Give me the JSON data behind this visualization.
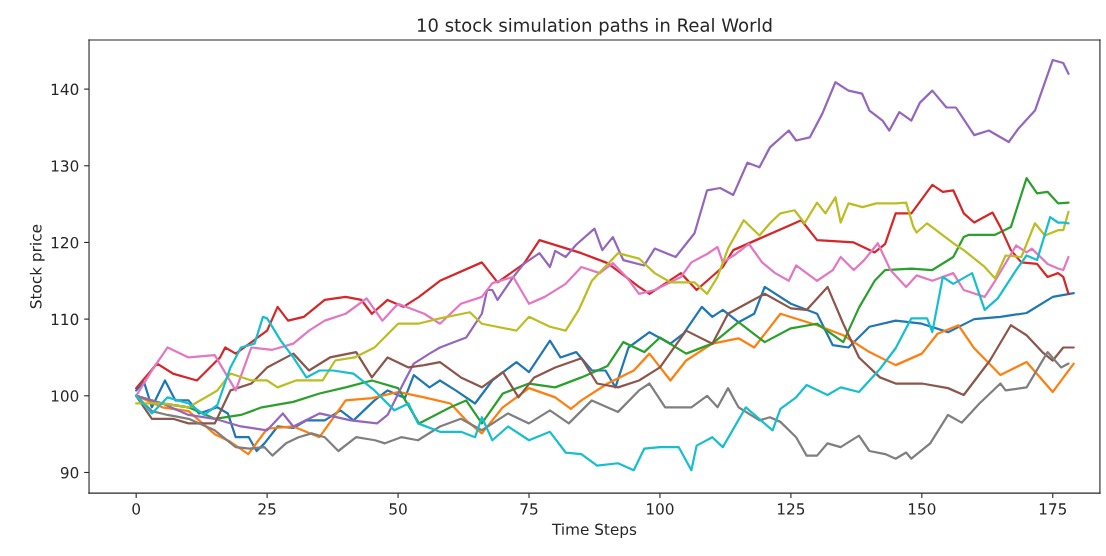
{
  "chart_data": {
    "type": "line",
    "title": "10 stock simulation paths in Real World",
    "xlabel": "Time Steps",
    "ylabel": "Stock price",
    "xlim": [
      -9,
      184
    ],
    "ylim": [
      87.3,
      146.4
    ],
    "xticks": [
      0,
      25,
      50,
      75,
      100,
      125,
      150,
      175
    ],
    "yticks": [
      90,
      100,
      110,
      120,
      130,
      140
    ],
    "line_style": "solid",
    "marker": "none",
    "series": [
      {
        "color": "#1f77b4",
        "x": [
          0,
          1.5,
          3,
          5.5,
          7.5,
          10,
          12,
          15.5,
          17.5,
          19,
          21.5,
          23,
          24.5,
          27,
          30,
          32.5,
          36,
          39,
          41.5,
          45.5,
          48,
          51.3,
          53,
          56,
          58,
          61,
          64.7,
          68,
          72.6,
          75,
          79,
          81,
          84,
          87,
          89.6,
          91.5,
          94,
          98,
          102,
          104.5,
          108,
          110,
          112,
          115,
          118,
          120,
          125,
          130,
          133,
          136,
          140,
          145,
          150,
          155,
          160,
          165,
          170,
          175,
          179
        ],
        "values": [
          100.7,
          101.8,
          98.5,
          102,
          99.4,
          99.4,
          97.7,
          98.5,
          97.7,
          94.6,
          94.6,
          92.8,
          93.8,
          96,
          95.8,
          96.8,
          96.8,
          98.1,
          96.8,
          99.4,
          100.7,
          99.7,
          102.7,
          101.1,
          102,
          100.7,
          99,
          102,
          104.4,
          103.1,
          107.2,
          105,
          105.7,
          103.3,
          103.3,
          101.1,
          106.3,
          108.3,
          106.8,
          108.1,
          111.6,
          110.3,
          111.2,
          109.6,
          110.7,
          114.2,
          112,
          110.7,
          106.6,
          106.3,
          109,
          109.8,
          109.4,
          108.3,
          110,
          110.3,
          110.8,
          112.9,
          113.4
        ]
      },
      {
        "color": "#ff7f0e",
        "x": [
          0,
          5,
          10,
          15,
          18,
          21.4,
          25,
          30,
          35,
          40,
          45,
          50,
          55,
          60,
          63,
          66,
          70,
          75,
          80,
          83,
          85,
          90,
          95,
          98,
          102,
          105,
          110,
          115,
          118,
          123,
          130,
          135,
          140,
          145,
          150,
          153,
          157,
          160,
          165,
          170,
          175,
          179
        ],
        "values": [
          100,
          98.5,
          98,
          95,
          94,
          92.4,
          95.7,
          96,
          94.6,
          99.4,
          99.7,
          100.5,
          99.8,
          99,
          96.8,
          95.1,
          98.5,
          101,
          99.8,
          98.3,
          99.4,
          101.6,
          103.3,
          105.5,
          102,
          104.6,
          106.8,
          107.5,
          106.3,
          110.7,
          109.2,
          107.9,
          105.7,
          104,
          105.5,
          108.1,
          109.2,
          106.2,
          102.7,
          104.4,
          100.5,
          104.2
        ]
      },
      {
        "color": "#2ca02c",
        "x": [
          0,
          5,
          10,
          15,
          20,
          24,
          30,
          35,
          40,
          45,
          50,
          54,
          60,
          63,
          66,
          70,
          75,
          80,
          85,
          90,
          93,
          97,
          100,
          105,
          110,
          115,
          120,
          125,
          130,
          135,
          138,
          141,
          143,
          148,
          152,
          156,
          158,
          159,
          164,
          167,
          170,
          172,
          174,
          176,
          178
        ],
        "values": [
          100,
          99,
          98.5,
          97,
          97.5,
          98.5,
          99.2,
          100.3,
          101.1,
          102,
          101,
          96.4,
          98.5,
          99.4,
          96.4,
          100.3,
          101.6,
          101.1,
          102.4,
          103.9,
          107,
          105.7,
          107.6,
          105.5,
          106.8,
          109.6,
          107,
          108.8,
          109.4,
          107,
          111.5,
          115,
          116.4,
          116.6,
          116.4,
          118.1,
          120.7,
          121,
          121,
          122,
          128.4,
          126.4,
          126.6,
          125.1,
          125.2
        ]
      },
      {
        "color": "#d62728",
        "x": [
          0,
          4,
          7,
          11.6,
          16,
          17,
          19,
          25,
          27,
          29,
          32,
          36,
          40,
          43,
          45,
          48,
          51,
          54,
          58,
          66,
          69,
          74,
          77,
          85,
          90,
          96,
          98,
          104,
          107,
          112,
          114,
          119,
          127,
          130,
          137,
          141,
          143,
          145,
          148,
          152,
          154,
          156,
          158,
          160,
          163.5,
          165,
          167,
          169,
          172,
          174,
          176,
          177,
          178
        ],
        "values": [
          101,
          104.2,
          102.9,
          102,
          105,
          106.3,
          105.5,
          108.5,
          111.6,
          109.8,
          110.3,
          112.5,
          112.9,
          112.5,
          110.7,
          112.5,
          111.6,
          112.9,
          115,
          117.4,
          114.8,
          117.2,
          120.3,
          118.6,
          117.3,
          114.2,
          113.3,
          116,
          113.8,
          116.8,
          119,
          120.5,
          122.9,
          120.3,
          120,
          118.7,
          119.8,
          123.8,
          123.8,
          127.5,
          126.6,
          126.8,
          123.8,
          122.6,
          123.9,
          122,
          119,
          117.4,
          117.2,
          115.5,
          116,
          115.5,
          113.3
        ]
      },
      {
        "color": "#9467bd",
        "x": [
          0,
          5,
          10,
          15,
          20,
          25,
          28,
          30,
          35,
          41,
          46,
          48,
          51,
          53,
          56,
          58,
          63,
          66,
          67,
          68,
          69,
          72,
          74,
          77,
          79,
          80,
          82,
          84,
          87.5,
          89,
          91,
          93,
          97,
          99,
          103,
          106.6,
          109,
          111.5,
          114,
          116.7,
          119,
          121,
          124.6,
          126,
          128.6,
          131,
          133.5,
          136,
          138.6,
          140,
          142.5,
          143.8,
          145.7,
          148,
          149.6,
          152,
          154.7,
          156.5,
          160,
          162.8,
          166.6,
          168.5,
          171.6,
          175,
          177,
          178
        ],
        "values": [
          100,
          99,
          97.5,
          97,
          96,
          95.5,
          97.7,
          96,
          97.7,
          96.8,
          96.4,
          97.5,
          101.6,
          104.2,
          105.5,
          106.3,
          107.6,
          110.7,
          113.8,
          113.8,
          112.5,
          115.5,
          117.2,
          118.6,
          116.8,
          118.9,
          118.1,
          119.7,
          121.8,
          119,
          120.7,
          117.7,
          117,
          119.2,
          118.1,
          121.2,
          126.8,
          127.1,
          126.2,
          130.4,
          129.8,
          132.4,
          134.6,
          133.3,
          133.7,
          136.8,
          140.9,
          139.8,
          139.4,
          137.2,
          135.9,
          134.6,
          137,
          135.9,
          138.2,
          139.8,
          137.6,
          137.6,
          134,
          134.6,
          133.1,
          134.9,
          137.2,
          143.8,
          143.4,
          142
        ]
      },
      {
        "color": "#8c564b",
        "x": [
          0,
          3,
          7,
          10,
          15,
          18,
          22,
          25,
          30,
          33,
          37,
          42,
          45,
          48,
          52,
          55,
          58,
          62,
          66,
          70,
          73,
          76,
          80,
          85,
          88,
          92,
          96,
          100,
          105,
          110,
          113,
          117,
          120,
          125,
          128,
          132,
          135,
          138,
          142,
          145,
          150,
          155,
          158,
          163,
          167,
          170,
          173,
          175,
          177,
          179
        ],
        "values": [
          100,
          97,
          97,
          96.4,
          96.4,
          100.7,
          101.6,
          103.7,
          105.5,
          103.3,
          105,
          105.7,
          102.4,
          105,
          103.7,
          104,
          104.4,
          102.4,
          101.1,
          103.1,
          99.8,
          102.4,
          103.7,
          104.9,
          101.6,
          101.1,
          102,
          103.7,
          108.5,
          106.8,
          110.7,
          112.2,
          113.3,
          111.4,
          111.2,
          114.2,
          109.4,
          105,
          102.4,
          101.6,
          101.6,
          101,
          100.1,
          104.6,
          109.2,
          107.9,
          105.7,
          104.6,
          106.3,
          106.3
        ]
      },
      {
        "color": "#e377c2",
        "x": [
          0,
          3,
          6,
          10,
          15,
          19,
          22,
          26,
          30,
          33,
          36,
          40,
          44,
          47,
          50,
          55,
          58,
          62,
          66,
          68,
          72,
          75,
          78,
          82,
          85,
          88.5,
          91,
          93.6,
          96,
          99,
          104,
          106,
          109,
          111,
          112,
          114.5,
          117,
          119.5,
          122,
          124.6,
          126,
          130,
          133,
          134.5,
          137,
          139,
          141.6,
          144,
          147,
          149,
          152,
          156,
          158,
          162,
          164,
          168,
          170,
          171,
          174,
          176,
          177,
          178
        ],
        "values": [
          100,
          103.3,
          106.3,
          105,
          105.3,
          100.7,
          106.3,
          106,
          106.8,
          108.5,
          109.8,
          110.7,
          112.7,
          109.8,
          112,
          110.7,
          109.4,
          112,
          112.9,
          114.7,
          115.5,
          112,
          112.9,
          114.6,
          116.8,
          116,
          117.3,
          115.5,
          113.3,
          113.8,
          115.5,
          117.4,
          118.5,
          119.4,
          117.4,
          118.5,
          119.8,
          117.4,
          116,
          115,
          117,
          115,
          116.4,
          118.1,
          116.4,
          117.7,
          119.9,
          116.4,
          114.2,
          115.7,
          115,
          116,
          113.8,
          112.9,
          115,
          119.6,
          118.7,
          119.2,
          117.2,
          116.6,
          116.4,
          118.1
        ]
      },
      {
        "color": "#7f7f7f",
        "x": [
          0,
          3,
          6,
          10,
          15,
          19,
          21.6,
          24.5,
          26,
          28.6,
          31,
          33.5,
          36,
          38.6,
          42,
          45.6,
          47.5,
          50.6,
          53.8,
          58,
          62,
          66,
          71,
          75,
          79,
          82.6,
          87,
          92,
          96,
          98,
          101,
          106,
          109,
          111,
          113,
          115,
          119,
          121,
          123,
          126,
          128,
          130,
          132,
          134.5,
          138,
          140,
          143,
          145,
          147,
          148,
          151.6,
          155,
          157.6,
          161,
          165,
          166,
          170,
          174,
          176.6,
          178
        ],
        "values": [
          100,
          98,
          97.5,
          97,
          95.5,
          93.3,
          93.1,
          93.3,
          92.2,
          93.8,
          94.6,
          95.1,
          94.6,
          92.8,
          94.6,
          94.2,
          93.8,
          94.6,
          94.2,
          96,
          97,
          95.5,
          97.7,
          96.4,
          98.1,
          96.4,
          99.4,
          97.9,
          100.7,
          101.6,
          98.5,
          98.5,
          100,
          98.5,
          101,
          98.5,
          96.8,
          97.2,
          96.6,
          94.6,
          92.2,
          92.2,
          93.8,
          93.3,
          94.8,
          92.8,
          92.4,
          91.8,
          92.6,
          91.8,
          93.8,
          97.5,
          96.5,
          99,
          101.6,
          100.7,
          101.1,
          105.7,
          103.7,
          104.2
        ]
      },
      {
        "color": "#bcbd22",
        "x": [
          0,
          5,
          10,
          15.5,
          18,
          22,
          25,
          27,
          30.5,
          35.6,
          38,
          41.7,
          45.5,
          50,
          53.8,
          58,
          63.7,
          66,
          72.6,
          75,
          79,
          82,
          84.5,
          87,
          92,
          96,
          99,
          102,
          106.6,
          109,
          111,
          113,
          116,
          119,
          121,
          123,
          125.7,
          127.6,
          130,
          131.6,
          133.5,
          134.5,
          136,
          138.7,
          141.3,
          145,
          147,
          148.4,
          149,
          151,
          156,
          158,
          162,
          164,
          166,
          169,
          171.6,
          173.5,
          176,
          177,
          178
        ],
        "values": [
          99,
          99,
          98.5,
          100.7,
          102.9,
          102,
          102,
          101.1,
          102,
          102,
          104.6,
          105,
          106.3,
          109.4,
          109.4,
          110.1,
          110.9,
          109.4,
          108.5,
          110.3,
          109,
          108.5,
          111.2,
          115,
          118.6,
          117.9,
          116,
          114.8,
          114.8,
          113.3,
          115.5,
          119.2,
          122.9,
          120.9,
          122.5,
          123.8,
          124.2,
          122.5,
          125.2,
          123.8,
          125.9,
          122.6,
          125.1,
          124.6,
          125.1,
          125.1,
          125.2,
          122,
          121.3,
          122.5,
          119.9,
          119,
          116.8,
          115.3,
          118.3,
          118.1,
          122.5,
          120.9,
          121.6,
          121.6,
          124
        ]
      },
      {
        "color": "#17becf",
        "x": [
          0,
          3,
          6,
          10,
          13,
          15.5,
          18,
          20,
          22.6,
          24.2,
          25,
          27.6,
          30,
          32.5,
          35,
          37.6,
          41.5,
          45.5,
          49.3,
          52,
          53.8,
          58,
          62,
          64.7,
          66,
          68,
          71,
          75,
          79,
          82,
          85,
          88,
          92,
          95,
          97,
          100,
          103.6,
          106,
          107,
          110,
          112,
          116.4,
          119.6,
          121.5,
          123,
          126,
          128,
          132,
          134.5,
          138,
          140,
          142,
          145,
          148,
          151,
          152,
          154,
          156,
          159.6,
          162,
          164.5,
          168,
          170,
          172,
          174.5,
          176,
          177,
          178
        ],
        "values": [
          100,
          97.7,
          99.8,
          99,
          97.5,
          98.8,
          103.7,
          106.3,
          106.8,
          110.3,
          110.1,
          107.2,
          105,
          102.4,
          103.3,
          103.3,
          102.9,
          100.7,
          98.1,
          99,
          96.4,
          95.3,
          95.3,
          94.6,
          97.2,
          94.2,
          96,
          94.2,
          95.3,
          92.6,
          92.4,
          90.9,
          91.2,
          90.3,
          93.1,
          93.3,
          93.3,
          90.3,
          93.5,
          94.6,
          93.3,
          98.5,
          96.6,
          95.5,
          98.3,
          99.8,
          101.4,
          100.1,
          101.1,
          100.5,
          102,
          103.5,
          106.2,
          110.1,
          110.1,
          108.3,
          115.5,
          114.6,
          116,
          111.2,
          112.7,
          116.4,
          118.3,
          117.7,
          123.3,
          122.6,
          122.6,
          122.5
        ]
      }
    ]
  }
}
